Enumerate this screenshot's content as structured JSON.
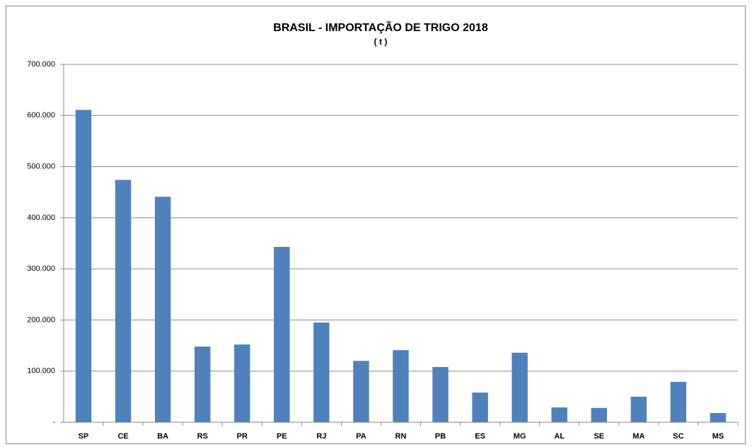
{
  "chart_data": {
    "type": "bar",
    "title": "BRASIL - IMPORTAÇÃO DE TRIGO 2018",
    "subtitle": "( t )",
    "categories": [
      "SP",
      "CE",
      "BA",
      "RS",
      "PR",
      "PE",
      "RJ",
      "PA",
      "RN",
      "PB",
      "ES",
      "MG",
      "AL",
      "SE",
      "MA",
      "SC",
      "MS"
    ],
    "values": [
      611000,
      474000,
      441000,
      148000,
      152000,
      343000,
      195000,
      120000,
      141000,
      108000,
      58000,
      136000,
      29000,
      28000,
      50000,
      79000,
      18000
    ],
    "color": "#4f81bd",
    "ylim": [
      0,
      700000
    ],
    "yticks": [
      {
        "value": 0,
        "label": "-"
      },
      {
        "value": 100000,
        "label": "100.000"
      },
      {
        "value": 200000,
        "label": "200.000"
      },
      {
        "value": 300000,
        "label": "300.000"
      },
      {
        "value": 400000,
        "label": "400.000"
      },
      {
        "value": 500000,
        "label": "500.000"
      },
      {
        "value": 600000,
        "label": "600.000"
      },
      {
        "value": 700000,
        "label": "700.000"
      }
    ],
    "grid": true
  }
}
